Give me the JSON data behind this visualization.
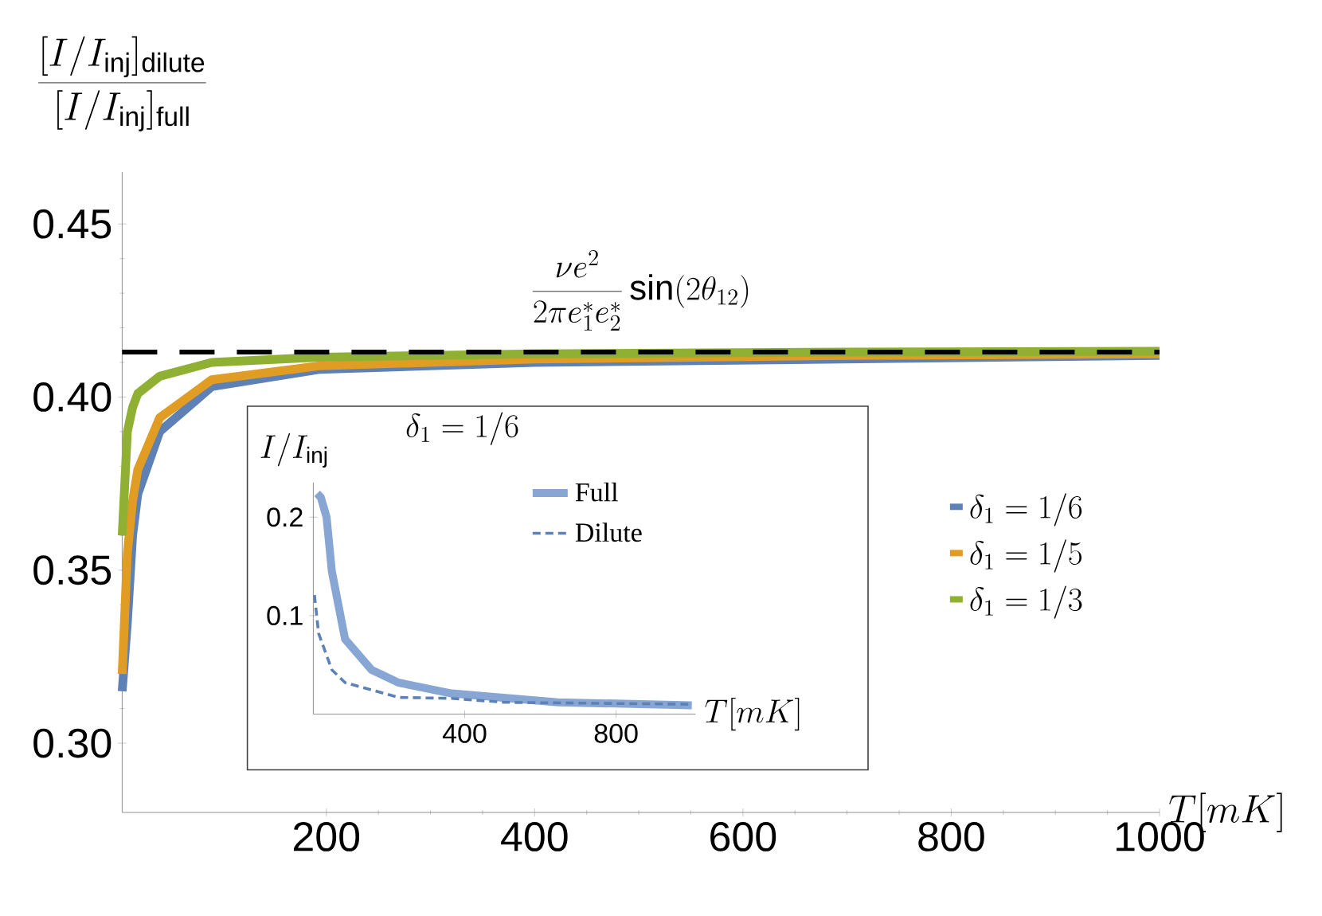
{
  "chart_data": [
    {
      "type": "line",
      "ylabel": "\\frac{[I/I_{\\mathrm{inj}}]_{\\mathrm{dilute}}}{[I/I_{\\mathrm{inj}}]_{\\mathrm{full}}}",
      "xlabel": "T[mK]",
      "x": [
        4,
        9,
        14,
        19,
        40,
        90,
        193,
        400,
        700,
        1000
      ],
      "xlim": [
        4,
        1000
      ],
      "ylim": [
        0.28,
        0.465
      ],
      "xticks": [
        200,
        400,
        600,
        800,
        1000
      ],
      "yticks": [
        {
          "value": 0.3,
          "label": "0.30"
        },
        0.35,
        {
          "value": 0.4,
          "label": "0.40"
        },
        0.45
      ],
      "legend": "right",
      "series": [
        {
          "name": "\\delta_1 = 1/6",
          "color": "#5e81b5",
          "values": [
            0.315,
            0.335,
            0.36,
            0.372,
            0.39,
            0.403,
            0.408,
            0.41,
            0.411,
            0.412
          ]
        },
        {
          "name": "\\delta_1 = 1/5",
          "color": "#e19c24",
          "values": [
            0.32,
            0.355,
            0.37,
            0.379,
            0.394,
            0.405,
            0.409,
            0.411,
            0.412,
            0.4125
          ]
        },
        {
          "name": "\\delta_1 = 1/3",
          "color": "#8fb032",
          "values": [
            0.36,
            0.39,
            0.397,
            0.401,
            0.406,
            0.41,
            0.4115,
            0.4125,
            0.413,
            0.4132
          ]
        }
      ],
      "ref_lines": [
        {
          "axis": "y",
          "value": 0.413,
          "label": "\\frac{\\nu e^2}{2\\pi e_1^* e_2^*}\\sin(2\\theta_{12})",
          "line_style": "dashed",
          "color": "#000000"
        }
      ]
    },
    {
      "type": "line",
      "title": "\\delta_1 = 1/6",
      "ylabel": "I/I_{\\mathrm{inj}}",
      "xlabel": "T[mK]",
      "xlim": [
        0,
        1010
      ],
      "ylim": [
        0,
        0.235
      ],
      "xticks": [
        400,
        800
      ],
      "yticks": [
        0.1,
        0.2
      ],
      "legend": "top",
      "series": [
        {
          "name": "Full",
          "color": "#88a6d4",
          "x": [
            10,
            20,
            35,
            49,
            84,
            154,
            225,
            365,
            646,
            1000
          ],
          "values": [
            0.224,
            0.22,
            0.2,
            0.145,
            0.076,
            0.045,
            0.032,
            0.021,
            0.012,
            0.009
          ]
        },
        {
          "name": "Dilute",
          "color": "#5e81b5",
          "line_style": "dashed",
          "x": [
            3,
            14,
            49,
            84,
            225,
            365,
            505,
            1000
          ],
          "values": [
            0.121,
            0.082,
            0.045,
            0.032,
            0.017,
            0.016,
            0.012,
            0.01
          ]
        }
      ]
    }
  ]
}
